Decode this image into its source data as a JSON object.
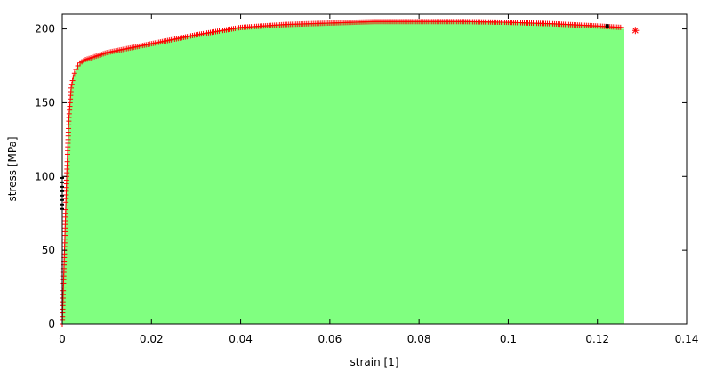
{
  "chart_data": {
    "type": "area",
    "title": "",
    "xlabel": "strain [1]",
    "ylabel": "stress [MPa]",
    "xlim": [
      0,
      0.14
    ],
    "ylim": [
      0,
      210
    ],
    "x_ticks": [
      0,
      0.02,
      0.04,
      0.06,
      0.08,
      0.1,
      0.12,
      0.14
    ],
    "x_tick_labels": [
      "0",
      "0.02",
      "0.04",
      "0.06",
      "0.08",
      "0.1",
      "0.12",
      "0.14"
    ],
    "y_ticks": [
      0,
      50,
      100,
      150,
      200
    ],
    "y_tick_labels": [
      "0",
      "50",
      "100",
      "150",
      "200"
    ],
    "grid": false,
    "colors": {
      "fill": "#80ff80",
      "markers": "#ff0000",
      "highlight": "#000000",
      "frame": "#000000"
    },
    "series": [
      {
        "style": "filled-area",
        "color": "#80ff80",
        "x": [
          0,
          0.0005,
          0.001,
          0.0015,
          0.002,
          0.0025,
          0.003,
          0.0035,
          0.004,
          0.005,
          0.006,
          0.008,
          0.01,
          0.015,
          0.02,
          0.025,
          0.03,
          0.04,
          0.05,
          0.06,
          0.07,
          0.08,
          0.09,
          0.1,
          0.11,
          0.12,
          0.126
        ],
        "y": [
          0,
          50,
          100,
          140,
          160,
          168,
          172,
          175,
          177,
          179,
          180,
          182,
          184,
          187,
          190,
          193,
          196,
          201,
          203,
          204,
          205,
          205,
          205,
          204.5,
          203.5,
          202,
          200
        ]
      },
      {
        "style": "markers",
        "marker": "+",
        "color": "#ff0000",
        "x": [
          0,
          0.0005,
          0.001,
          0.0015,
          0.002,
          0.0025,
          0.003,
          0.0035,
          0.004,
          0.005,
          0.006,
          0.008,
          0.01,
          0.015,
          0.02,
          0.025,
          0.03,
          0.04,
          0.05,
          0.06,
          0.07,
          0.08,
          0.09,
          0.1,
          0.11,
          0.12,
          0.1255
        ],
        "y": [
          0,
          50,
          100,
          140,
          160,
          168,
          172,
          175,
          177,
          179,
          180,
          182,
          184,
          187,
          190,
          193,
          196,
          201,
          203,
          204,
          205,
          205,
          205,
          204.5,
          203.5,
          202,
          201
        ]
      },
      {
        "style": "markers",
        "marker": "*",
        "color": "#ff0000",
        "x": [
          0.1285
        ],
        "y": [
          199
        ]
      }
    ]
  }
}
